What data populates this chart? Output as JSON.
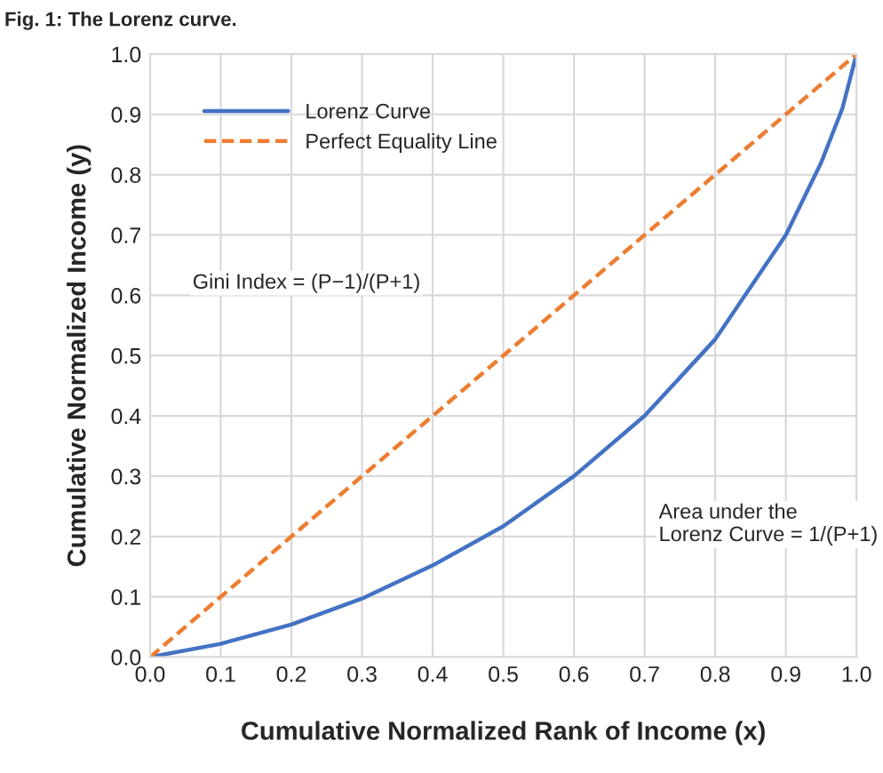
{
  "chart_data": {
    "type": "line",
    "title": "Fig. 1: The Lorenz curve.",
    "xlabel": "Cumulative Normalized Rank of Income (x)",
    "ylabel": "Cumulative Normalized Income (y)",
    "series": [
      {
        "name": "Lorenz Curve",
        "color": "#4472c4",
        "line_style": "solid",
        "x": [
          0,
          0.1,
          0.2,
          0.3,
          0.4,
          0.5,
          0.6,
          0.7,
          0.8,
          0.9,
          0.95,
          0.98,
          1.0
        ],
        "values": [
          0,
          0.022,
          0.054,
          0.097,
          0.152,
          0.217,
          0.3,
          0.4,
          0.527,
          0.7,
          0.82,
          0.91,
          1.0
        ]
      },
      {
        "name": "Perfect Equality Line",
        "color": "#ed7d31",
        "line_style": "dashed",
        "x": [
          0,
          1.0
        ],
        "values": [
          0,
          1.0
        ]
      }
    ],
    "annotations": [
      "Gini Index = (P−1)/(P+1)",
      "Area under the\nLorenz Curve = 1/(P+1)"
    ],
    "xlim": [
      0,
      1.0
    ],
    "ylim": [
      0,
      1.0
    ],
    "xticks": [
      {
        "value": 0,
        "label": "0.0"
      },
      {
        "value": 0.1,
        "label": "0.1"
      },
      {
        "value": 0.2,
        "label": "0.2"
      },
      {
        "value": 0.3,
        "label": "0.3"
      },
      {
        "value": 0.4,
        "label": "0.4"
      },
      {
        "value": 0.5,
        "label": "0.5"
      },
      {
        "value": 0.6,
        "label": "0.6"
      },
      {
        "value": 0.7,
        "label": "0.7"
      },
      {
        "value": 0.8,
        "label": "0.8"
      },
      {
        "value": 0.9,
        "label": "0.9"
      },
      {
        "value": 1.0,
        "label": "1.0"
      }
    ],
    "yticks": [
      {
        "value": 0,
        "label": "0.0"
      },
      {
        "value": 0.1,
        "label": "0.1"
      },
      {
        "value": 0.2,
        "label": "0.2"
      },
      {
        "value": 0.3,
        "label": "0.3"
      },
      {
        "value": 0.4,
        "label": "0.4"
      },
      {
        "value": 0.5,
        "label": "0.5"
      },
      {
        "value": 0.6,
        "label": "0.6"
      },
      {
        "value": 0.7,
        "label": "0.7"
      },
      {
        "value": 0.8,
        "label": "0.8"
      },
      {
        "value": 0.9,
        "label": "0.9"
      },
      {
        "value": 1.0,
        "label": "1.0"
      }
    ],
    "grid": true,
    "legend": "top left",
    "marker": "none"
  }
}
